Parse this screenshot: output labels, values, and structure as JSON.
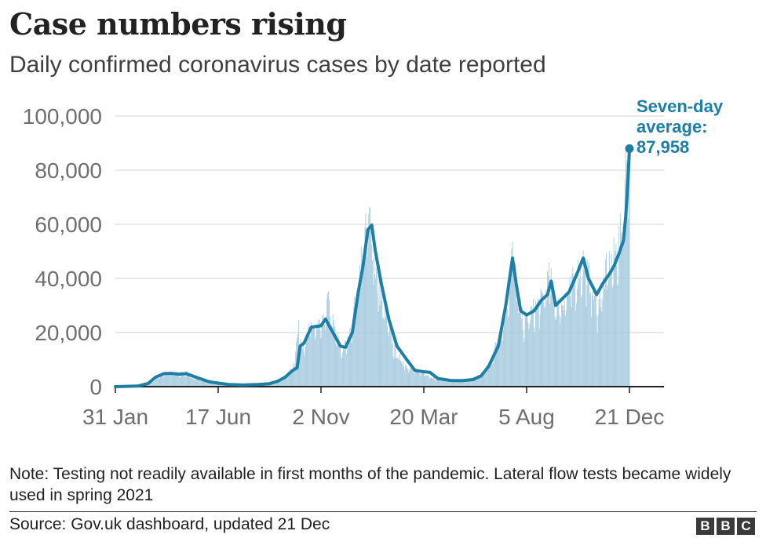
{
  "chart_data": {
    "type": "bar+line",
    "title": "Case numbers rising",
    "subtitle": "Daily confirmed coronavirus cases by date reported",
    "xlabel": "",
    "ylabel": "",
    "ylim": [
      0,
      100000
    ],
    "y_ticks": [
      0,
      20000,
      40000,
      60000,
      80000,
      100000
    ],
    "y_tick_labels": [
      "0",
      "20,000",
      "40,000",
      "60,000",
      "80,000",
      "100,000"
    ],
    "x_range": [
      "2020-01-31",
      "2021-12-21"
    ],
    "x_ticks": [
      {
        "date": "2020-01-31",
        "label": "31 Jan"
      },
      {
        "date": "2020-06-17",
        "label": "17 Jun"
      },
      {
        "date": "2020-11-02",
        "label": "2 Nov"
      },
      {
        "date": "2021-03-20",
        "label": "20 Mar"
      },
      {
        "date": "2021-08-05",
        "label": "5 Aug"
      },
      {
        "date": "2021-12-21",
        "label": "21 Dec"
      }
    ],
    "grid": true,
    "series": [
      {
        "kind": "daily_bars",
        "color": "#aacde0",
        "points": [
          [
            "2020-01-31",
            0
          ],
          [
            "2020-03-01",
            100
          ],
          [
            "2020-03-20",
            2000
          ],
          [
            "2020-04-01",
            4500
          ],
          [
            "2020-04-15",
            5500
          ],
          [
            "2020-04-25",
            5000
          ],
          [
            "2020-05-05",
            5200
          ],
          [
            "2020-05-15",
            3500
          ],
          [
            "2020-06-01",
            2000
          ],
          [
            "2020-06-17",
            1200
          ],
          [
            "2020-07-10",
            700
          ],
          [
            "2020-08-01",
            800
          ],
          [
            "2020-08-25",
            1200
          ],
          [
            "2020-09-10",
            3000
          ],
          [
            "2020-09-25",
            7000
          ],
          [
            "2020-10-03",
            22000
          ],
          [
            "2020-10-10",
            15000
          ],
          [
            "2020-10-20",
            24000
          ],
          [
            "2020-10-25",
            22000
          ],
          [
            "2020-11-05",
            24000
          ],
          [
            "2020-11-11",
            33000
          ],
          [
            "2020-11-20",
            22000
          ],
          [
            "2020-11-30",
            14000
          ],
          [
            "2020-12-10",
            18000
          ],
          [
            "2020-12-20",
            36000
          ],
          [
            "2020-12-29",
            55000
          ],
          [
            "2021-01-05",
            62000
          ],
          [
            "2021-01-08",
            68000
          ],
          [
            "2021-01-12",
            48000
          ],
          [
            "2021-01-20",
            36000
          ],
          [
            "2021-01-30",
            24000
          ],
          [
            "2021-02-10",
            13000
          ],
          [
            "2021-02-25",
            8000
          ],
          [
            "2021-03-10",
            6000
          ],
          [
            "2021-03-20",
            5500
          ],
          [
            "2021-04-05",
            3000
          ],
          [
            "2021-04-25",
            2200
          ],
          [
            "2021-05-15",
            2400
          ],
          [
            "2021-06-01",
            3500
          ],
          [
            "2021-06-15",
            8000
          ],
          [
            "2021-06-30",
            20000
          ],
          [
            "2021-07-10",
            32000
          ],
          [
            "2021-07-17",
            54000
          ],
          [
            "2021-07-24",
            34000
          ],
          [
            "2021-08-01",
            24000
          ],
          [
            "2021-08-10",
            28000
          ],
          [
            "2021-08-25",
            33000
          ],
          [
            "2021-09-05",
            42000
          ],
          [
            "2021-09-15",
            30000
          ],
          [
            "2021-09-30",
            36000
          ],
          [
            "2021-10-10",
            42000
          ],
          [
            "2021-10-20",
            48000
          ],
          [
            "2021-10-30",
            40000
          ],
          [
            "2021-11-08",
            30000
          ],
          [
            "2021-11-20",
            44000
          ],
          [
            "2021-12-01",
            50000
          ],
          [
            "2021-12-10",
            58000
          ],
          [
            "2021-12-15",
            78000
          ],
          [
            "2021-12-18",
            93000
          ],
          [
            "2021-12-21",
            91000
          ]
        ]
      },
      {
        "name": "Seven-day average",
        "kind": "line",
        "color": "#1d7fa3",
        "points": [
          [
            "2020-01-31",
            0
          ],
          [
            "2020-03-01",
            200
          ],
          [
            "2020-03-15",
            1200
          ],
          [
            "2020-03-25",
            3500
          ],
          [
            "2020-04-05",
            4800
          ],
          [
            "2020-04-15",
            4900
          ],
          [
            "2020-04-25",
            4600
          ],
          [
            "2020-05-05",
            4800
          ],
          [
            "2020-05-15",
            3800
          ],
          [
            "2020-05-25",
            2800
          ],
          [
            "2020-06-05",
            1800
          ],
          [
            "2020-06-17",
            1300
          ],
          [
            "2020-07-01",
            800
          ],
          [
            "2020-07-20",
            600
          ],
          [
            "2020-08-10",
            800
          ],
          [
            "2020-08-25",
            1100
          ],
          [
            "2020-09-05",
            2000
          ],
          [
            "2020-09-15",
            3500
          ],
          [
            "2020-09-25",
            6000
          ],
          [
            "2020-10-01",
            7000
          ],
          [
            "2020-10-05",
            15000
          ],
          [
            "2020-10-10",
            16000
          ],
          [
            "2020-10-20",
            22000
          ],
          [
            "2020-11-02",
            22500
          ],
          [
            "2020-11-08",
            25000
          ],
          [
            "2020-11-18",
            20000
          ],
          [
            "2020-11-28",
            15000
          ],
          [
            "2020-12-05",
            14500
          ],
          [
            "2020-12-14",
            20000
          ],
          [
            "2020-12-22",
            35000
          ],
          [
            "2020-12-28",
            44000
          ],
          [
            "2021-01-04",
            58000
          ],
          [
            "2021-01-09",
            59700
          ],
          [
            "2021-01-14",
            50000
          ],
          [
            "2021-01-22",
            38000
          ],
          [
            "2021-02-01",
            25000
          ],
          [
            "2021-02-12",
            15000
          ],
          [
            "2021-02-25",
            10000
          ],
          [
            "2021-03-08",
            6000
          ],
          [
            "2021-03-20",
            5500
          ],
          [
            "2021-03-28",
            5300
          ],
          [
            "2021-04-08",
            3000
          ],
          [
            "2021-04-25",
            2300
          ],
          [
            "2021-05-10",
            2200
          ],
          [
            "2021-05-25",
            2600
          ],
          [
            "2021-06-05",
            4000
          ],
          [
            "2021-06-15",
            7500
          ],
          [
            "2021-06-28",
            15000
          ],
          [
            "2021-07-08",
            30000
          ],
          [
            "2021-07-17",
            47500
          ],
          [
            "2021-07-22",
            38000
          ],
          [
            "2021-07-28",
            28000
          ],
          [
            "2021-08-05",
            26500
          ],
          [
            "2021-08-15",
            28000
          ],
          [
            "2021-08-25",
            32000
          ],
          [
            "2021-09-02",
            34000
          ],
          [
            "2021-09-07",
            39000
          ],
          [
            "2021-09-13",
            30000
          ],
          [
            "2021-09-20",
            32000
          ],
          [
            "2021-10-01",
            35000
          ],
          [
            "2021-10-12",
            42000
          ],
          [
            "2021-10-20",
            47500
          ],
          [
            "2021-10-27",
            40000
          ],
          [
            "2021-11-07",
            34000
          ],
          [
            "2021-11-15",
            38000
          ],
          [
            "2021-11-25",
            42000
          ],
          [
            "2021-12-01",
            45000
          ],
          [
            "2021-12-08",
            50000
          ],
          [
            "2021-12-13",
            54000
          ],
          [
            "2021-12-16",
            63000
          ],
          [
            "2021-12-19",
            76000
          ],
          [
            "2021-12-21",
            87958
          ]
        ]
      }
    ],
    "annotation": {
      "lines": [
        "Seven-day",
        "average:",
        "87,958"
      ],
      "date": "2021-12-21",
      "value": 87958,
      "color": "#1d7fa3"
    }
  },
  "note": "Note: Testing not readily available in first months of the pandemic. Lateral flow tests became widely used in spring 2021",
  "source": "Source: Gov.uk dashboard, updated 21 Dec",
  "logo": {
    "letters": [
      "B",
      "B",
      "C"
    ]
  },
  "colors": {
    "axis": "#222222",
    "grid": "#dcdcdc",
    "tick_text": "#6e6e73",
    "line": "#1d7fa3",
    "bars": "#aacde0"
  }
}
